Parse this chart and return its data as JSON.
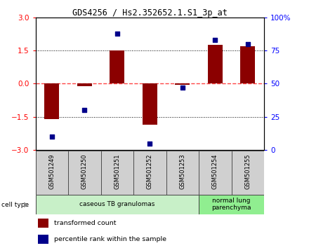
{
  "title": "GDS4256 / Hs2.352652.1.S1_3p_at",
  "samples": [
    "GSM501249",
    "GSM501250",
    "GSM501251",
    "GSM501252",
    "GSM501253",
    "GSM501254",
    "GSM501255"
  ],
  "transformed_counts": [
    -1.6,
    -0.1,
    1.5,
    -1.85,
    -0.05,
    1.75,
    1.7
  ],
  "percentile_ranks": [
    10,
    30,
    88,
    5,
    47,
    83,
    80
  ],
  "ylim_left": [
    -3,
    3
  ],
  "ylim_right": [
    0,
    100
  ],
  "yticks_left": [
    -3,
    -1.5,
    0,
    1.5,
    3
  ],
  "yticks_right": [
    0,
    25,
    50,
    75,
    100
  ],
  "ytick_labels_right": [
    "0",
    "25",
    "50",
    "75",
    "100%"
  ],
  "bar_color": "#8B0000",
  "dot_color": "#00008B",
  "zero_line_color": "#FF4444",
  "grid_line_color": "#000000",
  "groups": [
    {
      "label": "caseous TB granulomas",
      "start": 0,
      "end": 4,
      "color": "#c8f0c8"
    },
    {
      "label": "normal lung\nparenchyma",
      "start": 5,
      "end": 6,
      "color": "#90ee90"
    }
  ],
  "cell_type_label": "cell type",
  "legend": [
    {
      "color": "#8B0000",
      "label": "transformed count"
    },
    {
      "color": "#00008B",
      "label": "percentile rank within the sample"
    }
  ],
  "bg_color": "#ffffff",
  "plot_bg_color": "#ffffff",
  "sample_box_color": "#d0d0d0",
  "sample_box_edge_color": "#444444"
}
